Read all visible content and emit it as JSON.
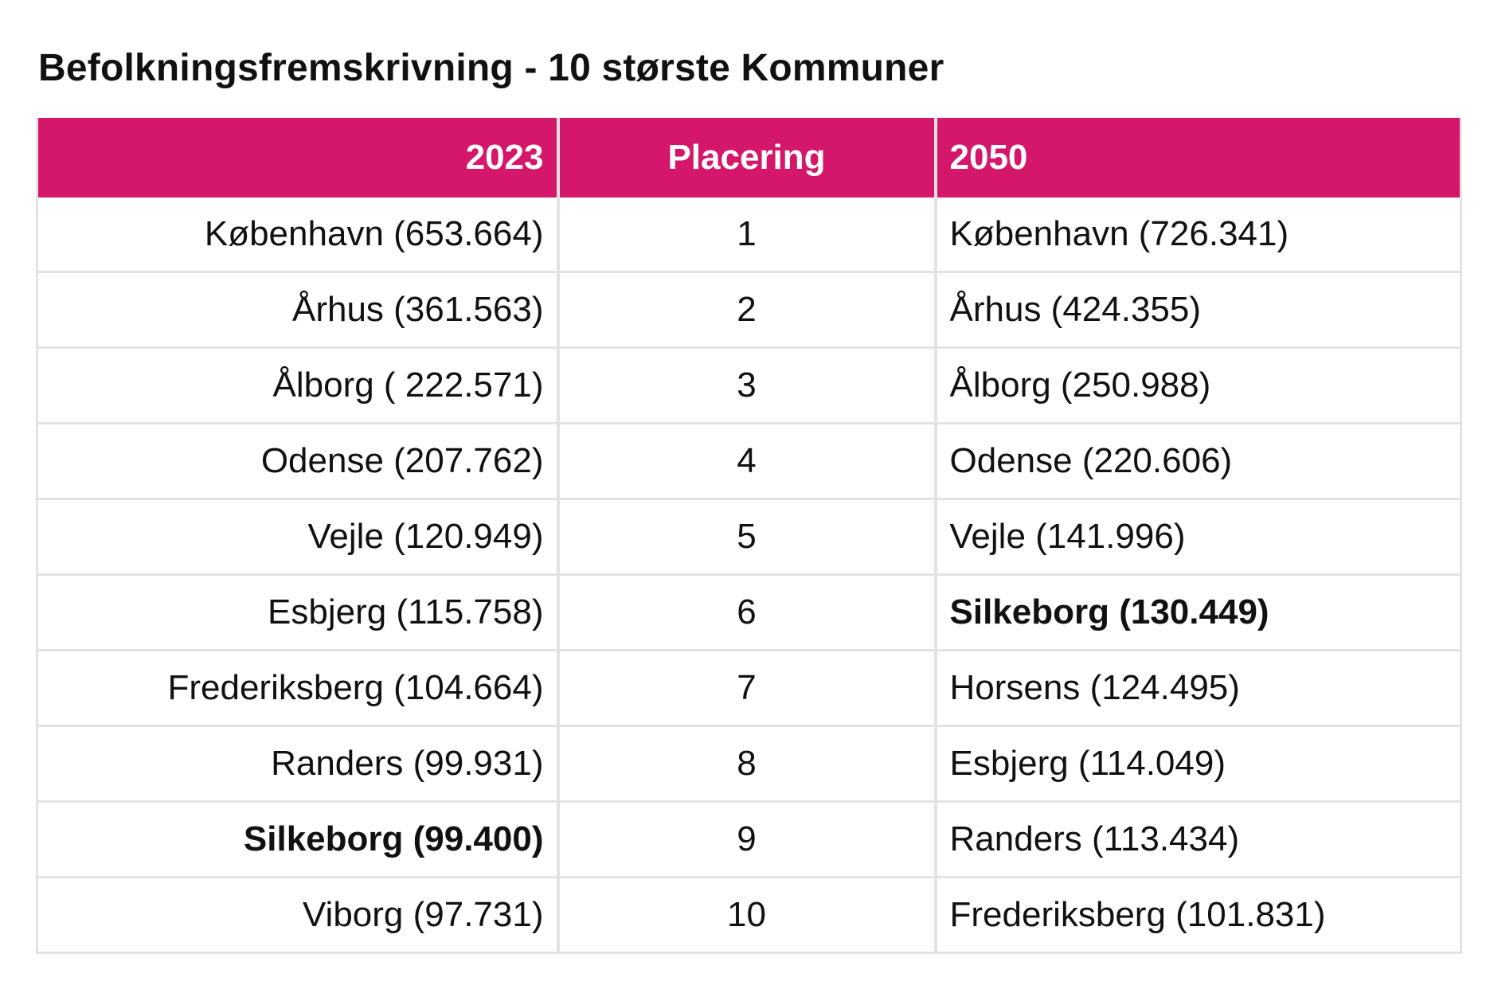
{
  "title": "Befolkningsfremskrivning - 10 største Kommuner",
  "colors": {
    "header_bg": "#d4176a",
    "header_text": "#ffffff",
    "grid": "#e3e3e3",
    "text": "#111111"
  },
  "chart_data": {
    "type": "table",
    "title": "Befolkningsfremskrivning - 10 største Kommuner",
    "columns": [
      "2023",
      "Placering",
      "2050"
    ],
    "rows": [
      {
        "rank": "1",
        "y2023": "København (653.664)",
        "y2050": "København (726.341)",
        "bold2023": false,
        "bold2050": false
      },
      {
        "rank": "2",
        "y2023": "Århus (361.563)",
        "y2050": "Århus (424.355)",
        "bold2023": false,
        "bold2050": false
      },
      {
        "rank": "3",
        "y2023": "Ålborg ( 222.571)",
        "y2050": "Ålborg (250.988)",
        "bold2023": false,
        "bold2050": false
      },
      {
        "rank": "4",
        "y2023": "Odense (207.762)",
        "y2050": "Odense (220.606)",
        "bold2023": false,
        "bold2050": false
      },
      {
        "rank": "5",
        "y2023": "Vejle (120.949)",
        "y2050": "Vejle (141.996)",
        "bold2023": false,
        "bold2050": false
      },
      {
        "rank": "6",
        "y2023": "Esbjerg (115.758)",
        "y2050": "Silkeborg (130.449)",
        "bold2023": false,
        "bold2050": true
      },
      {
        "rank": "7",
        "y2023": "Frederiksberg (104.664)",
        "y2050": "Horsens (124.495)",
        "bold2023": false,
        "bold2050": false
      },
      {
        "rank": "8",
        "y2023": "Randers (99.931)",
        "y2050": "Esbjerg (114.049)",
        "bold2023": false,
        "bold2050": false
      },
      {
        "rank": "9",
        "y2023": "Silkeborg (99.400)",
        "y2050": "Randers (113.434)",
        "bold2023": true,
        "bold2050": false
      },
      {
        "rank": "10",
        "y2023": "Viborg (97.731)",
        "y2050": "Frederiksberg (101.831)",
        "bold2023": false,
        "bold2050": false
      }
    ]
  }
}
